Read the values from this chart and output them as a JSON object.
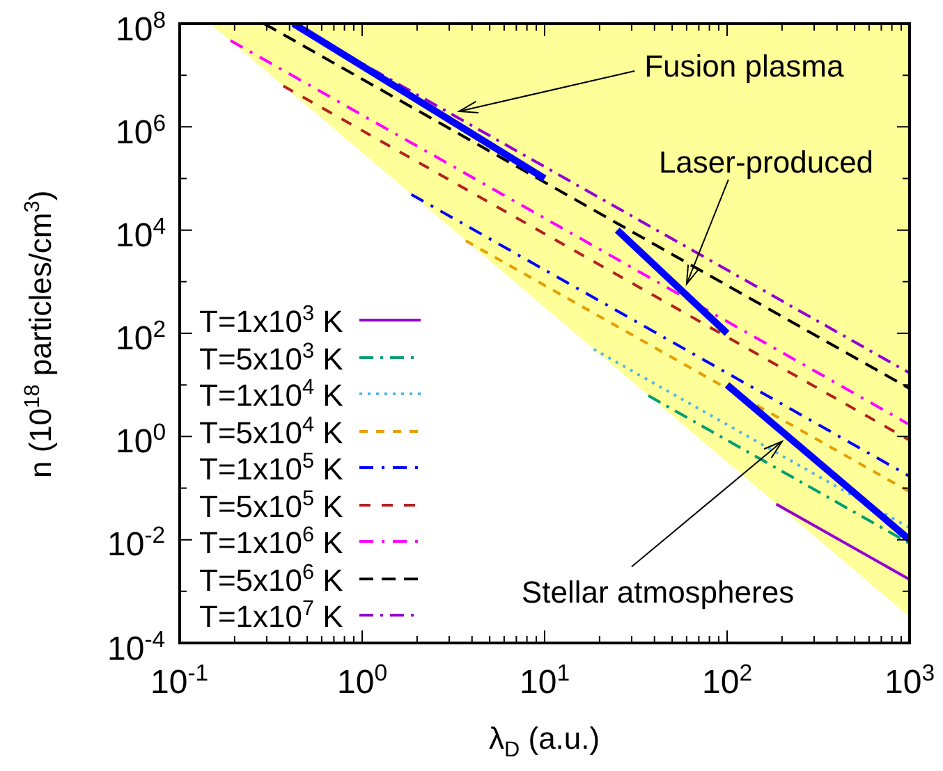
{
  "chart_data": {
    "type": "line",
    "xlabel": "λ$_{D}$ (a.u.)",
    "ylabel": "n (10$^{18}$ particles/cm$^{3}$)",
    "log": "xy",
    "grid": false,
    "legend": "bottom left",
    "marker": "none",
    "xlim": [
      0.1,
      1000
    ],
    "ylim": [
      0.0001,
      100000000
    ],
    "xticks": [
      {
        "value": 0.1,
        "label": "10$^{-1}$"
      },
      {
        "value": 0.2,
        "label": null
      },
      {
        "value": 0.3,
        "label": null
      },
      {
        "value": 0.4,
        "label": null
      },
      {
        "value": 0.5,
        "label": null
      },
      {
        "value": 0.6,
        "label": null
      },
      {
        "value": 0.7,
        "label": null
      },
      {
        "value": 0.8,
        "label": null
      },
      {
        "value": 0.9,
        "label": null
      },
      {
        "value": 1,
        "label": "10$^{0}$"
      },
      {
        "value": 2,
        "label": null
      },
      {
        "value": 3,
        "label": null
      },
      {
        "value": 4,
        "label": null
      },
      {
        "value": 5,
        "label": null
      },
      {
        "value": 6,
        "label": null
      },
      {
        "value": 7,
        "label": null
      },
      {
        "value": 8,
        "label": null
      },
      {
        "value": 9,
        "label": null
      },
      {
        "value": 10,
        "label": "10$^{1}$"
      },
      {
        "value": 20,
        "label": null
      },
      {
        "value": 30,
        "label": null
      },
      {
        "value": 40,
        "label": null
      },
      {
        "value": 50,
        "label": null
      },
      {
        "value": 60,
        "label": null
      },
      {
        "value": 70,
        "label": null
      },
      {
        "value": 80,
        "label": null
      },
      {
        "value": 90,
        "label": null
      },
      {
        "value": 100,
        "label": "10$^{2}$"
      },
      {
        "value": 200,
        "label": null
      },
      {
        "value": 300,
        "label": null
      },
      {
        "value": 400,
        "label": null
      },
      {
        "value": 500,
        "label": null
      },
      {
        "value": 600,
        "label": null
      },
      {
        "value": 700,
        "label": null
      },
      {
        "value": 800,
        "label": null
      },
      {
        "value": 900,
        "label": null
      },
      {
        "value": 1000,
        "label": "10$^{3}$"
      }
    ],
    "yticks": [
      {
        "value": 0.0001,
        "label": "10$^{-4}$"
      },
      {
        "value": 0.001,
        "label": null
      },
      {
        "value": 0.01,
        "label": "10$^{-2}$"
      },
      {
        "value": 0.1,
        "label": null
      },
      {
        "value": 1,
        "label": "10$^{0}$"
      },
      {
        "value": 10,
        "label": null
      },
      {
        "value": 100,
        "label": "10$^{2}$"
      },
      {
        "value": 1000,
        "label": null
      },
      {
        "value": 10000,
        "label": "10$^{4}$"
      },
      {
        "value": 100000,
        "label": null
      },
      {
        "value": 1000000,
        "label": "10$^{6}$"
      },
      {
        "value": 10000000,
        "label": null
      },
      {
        "value": 100000000,
        "label": "10$^{8}$"
      }
    ],
    "series": [
      {
        "type": "area",
        "color": "#ffff99",
        "x": [
          0.147,
          1000
        ],
        "values": [
          100000000,
          0.00032
        ]
      },
      {
        "name": "T=1x10$^{3}$ K",
        "color": "#9400d3",
        "line_style": "solid",
        "x": [
          186,
          1000
        ],
        "values": [
          0.049,
          0.0017
        ]
      },
      {
        "name": "T=5x10$^{3}$ K",
        "color": "#009e73",
        "line_style": "dashed",
        "x": [
          37,
          1000
        ],
        "values": [
          6.2,
          0.0085
        ]
      },
      {
        "name": "T=1x10$^{4}$ K",
        "color": "#56b4e9",
        "line_style": "dotted",
        "x": [
          18.6,
          1000
        ],
        "values": [
          49,
          0.017
        ]
      },
      {
        "name": "T=5x10$^{4}$ K",
        "color": "#e69f00",
        "line_style": "dashed",
        "x": [
          3.7,
          1000
        ],
        "values": [
          6200,
          0.085
        ]
      },
      {
        "name": "T=1x10$^{5}$ K",
        "color": "#0000ff",
        "line_style": "dashed",
        "x": [
          1.86,
          1000
        ],
        "values": [
          49000,
          0.17
        ]
      },
      {
        "name": "T=5x10$^{5}$ K",
        "color": "#b22222",
        "line_style": "dashed",
        "x": [
          0.37,
          1000
        ],
        "values": [
          6200000,
          0.85
        ]
      },
      {
        "name": "T=1x10$^{6}$ K",
        "color": "#ff00ff",
        "line_style": "dashed",
        "x": [
          0.19,
          1000
        ],
        "values": [
          47000000,
          1.7
        ]
      },
      {
        "name": "T=5x10$^{6}$ K",
        "color": "#000000",
        "line_style": "dashed",
        "x": [
          0.29,
          1000
        ],
        "values": [
          100000000,
          8.5
        ]
      },
      {
        "name": "T=1x10$^{7}$ K",
        "color": "#9400d3",
        "line_style": "dashed",
        "x": [
          0.41,
          1000
        ],
        "values": [
          100000000,
          17
        ]
      },
      {
        "color": "#0000ff",
        "line_style": "solid",
        "x": [
          0.42,
          10
        ],
        "values": [
          100000000,
          100000
        ]
      },
      {
        "color": "#0000ff",
        "line_style": "solid",
        "x": [
          25,
          100
        ],
        "values": [
          10000,
          100
        ]
      },
      {
        "color": "#0000ff",
        "line_style": "solid",
        "x": [
          100,
          1000
        ],
        "values": [
          10,
          0.01
        ]
      }
    ],
    "annotations": [
      {
        "text": "Fusion plasma",
        "x": 3.4,
        "y": 2000000
      },
      {
        "text": "Laser-produced",
        "x": 60,
        "y": 900
      },
      {
        "text": "Stellar atmospheres",
        "x": 200,
        "y": 0.8
      }
    ]
  }
}
